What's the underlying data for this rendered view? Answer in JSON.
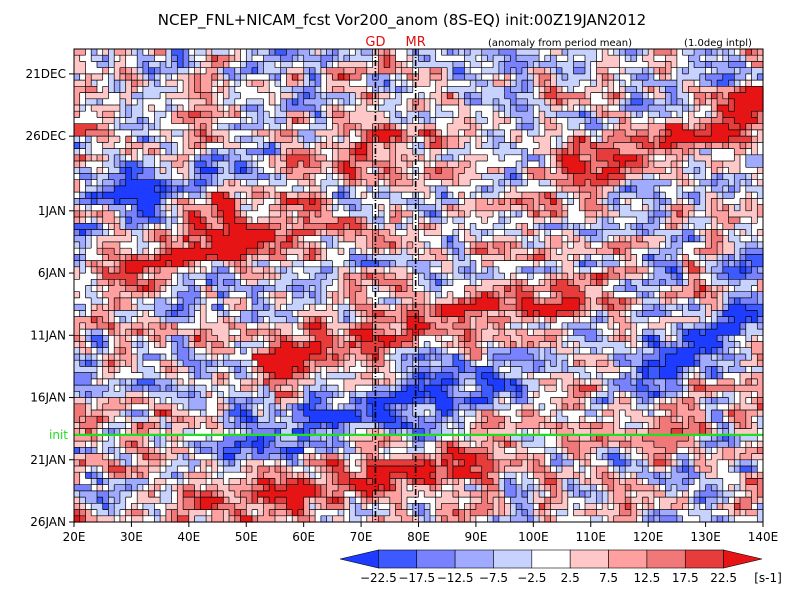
{
  "chart_data": {
    "type": "heatmap",
    "title": "NCEP_FNL+NICAM_fcst Vor200_anom (8S-EQ) init:00Z19JAN2012",
    "subtitle_left": "(anomaly from period mean)",
    "subtitle_right": "(1.0deg intpl)",
    "xlabel": "",
    "ylabel": "",
    "x_axis": {
      "range": [
        20,
        140
      ],
      "ticks": [
        20,
        30,
        40,
        50,
        60,
        70,
        80,
        90,
        100,
        110,
        120,
        130,
        140
      ],
      "tick_labels": [
        "20E",
        "30E",
        "40E",
        "50E",
        "60E",
        "70E",
        "80E",
        "90E",
        "100E",
        "110E",
        "120E",
        "130E",
        "140E"
      ]
    },
    "y_axis": {
      "range": [
        "2011-12-19",
        "2012-01-26"
      ],
      "direction": "time increasing downward",
      "ticks": [
        "2011-12-21",
        "2011-12-26",
        "2012-01-01",
        "2012-01-06",
        "2012-01-11",
        "2012-01-16",
        "2012-01-21",
        "2012-01-26"
      ],
      "tick_labels": [
        "21DEC",
        "26DEC",
        "1JAN",
        "6JAN",
        "11JAN",
        "16JAN",
        "21JAN",
        "26JAN"
      ]
    },
    "init_line": {
      "label": "init",
      "date": "2012-01-19",
      "color": "#22dd22"
    },
    "site_markers": [
      {
        "label": "GD",
        "lon": 72.5
      },
      {
        "label": "MR",
        "lon": 79.5
      }
    ],
    "propagating_features": [
      {
        "sign": "positive",
        "lon_start": 42,
        "date_start": "2012-01-01",
        "lon_end": 75,
        "date_end": "2011-12-26"
      },
      {
        "sign": "positive",
        "lon_start": 55,
        "date_start": "2012-01-13",
        "lon_end": 105,
        "date_end": "2012-01-08"
      },
      {
        "sign": "positive",
        "lon_start": 30,
        "date_start": "2012-01-06",
        "lon_end": 60,
        "date_end": "2012-01-02"
      },
      {
        "sign": "negative",
        "lon_start": 28,
        "date_start": "2011-12-31",
        "lon_end": 55,
        "date_end": "2011-12-29"
      },
      {
        "sign": "negative",
        "lon_start": 52,
        "date_start": "2012-01-19",
        "lon_end": 100,
        "date_end": "2012-01-14"
      },
      {
        "sign": "negative",
        "lon_start": 118,
        "date_start": "2012-01-14",
        "lon_end": 140,
        "date_end": "2012-01-09"
      },
      {
        "sign": "positive",
        "lon_start": 110,
        "date_start": "2011-12-28",
        "lon_end": 140,
        "date_end": "2011-12-24"
      },
      {
        "sign": "positive",
        "lon_start": 45,
        "date_start": "2012-01-25",
        "lon_end": 90,
        "date_end": "2012-01-21"
      }
    ],
    "colorbar": {
      "units": "[s-1]",
      "levels": [
        -22.5,
        -17.5,
        -12.5,
        -7.5,
        -2.5,
        2.5,
        7.5,
        12.5,
        17.5,
        22.5
      ],
      "level_labels": [
        "−22.5",
        "−17.5",
        "−12.5",
        "−7.5",
        "−2.5",
        "2.5",
        "7.5",
        "12.5",
        "17.5",
        "22.5"
      ],
      "colors": [
        "#1e3cff",
        "#3c5aff",
        "#7882ff",
        "#a0aaff",
        "#c8d2ff",
        "#ffffff",
        "#ffc8c8",
        "#ffa0a0",
        "#f07878",
        "#e63c3c",
        "#e61414"
      ]
    },
    "grid": false,
    "legend": "colorbar bottom-right"
  }
}
